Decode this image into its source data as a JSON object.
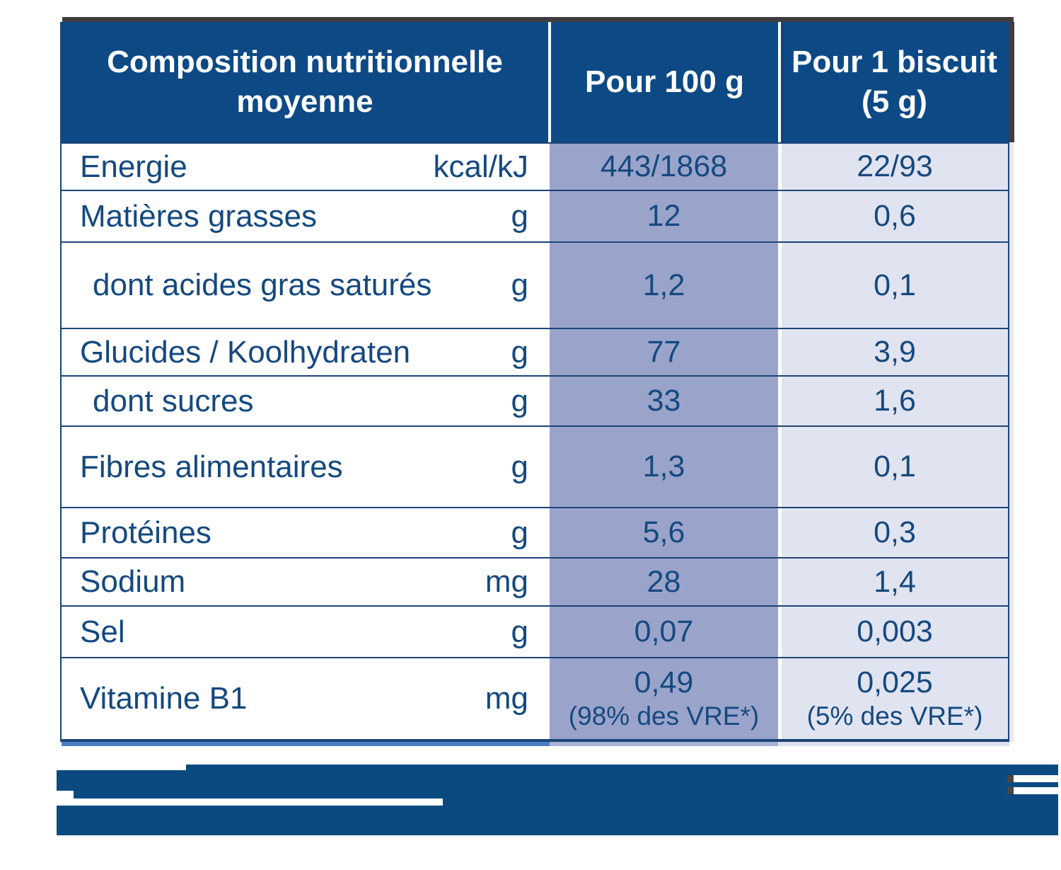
{
  "colors": {
    "header_blue": "#0d4a85",
    "text_blue": "#15497f",
    "divider_blue": "#1c4478",
    "col_100g_tint": "#9aa4ca",
    "col_biscuit_tint": "#e0e3f0",
    "footnote_blue": "#0a4a80",
    "shadow_gray": "#3e3e3e"
  },
  "table": {
    "header": {
      "composition": [
        "Composition nutritionnelle",
        "moyenne"
      ],
      "per_100g": "Pour 100 g",
      "per_biscuit": [
        "Pour 1 biscuit",
        "(5 g)"
      ]
    },
    "rows": [
      {
        "label": "Energie",
        "unit": "kcal/kJ",
        "per_100g": "443/1868",
        "per_biscuit": "22/93"
      },
      {
        "label": "Matières grasses",
        "unit": "g",
        "per_100g": "12",
        "per_biscuit": "0,6"
      },
      {
        "label": "dont acides gras saturés",
        "unit": "g",
        "per_100g": "1,2",
        "per_biscuit": "0,1",
        "indent": true
      },
      {
        "label": "Glucides / Koolhydraten",
        "unit": "g",
        "per_100g": "77",
        "per_biscuit": "3,9"
      },
      {
        "label": "dont sucres",
        "unit": "g",
        "per_100g": "33",
        "per_biscuit": "1,6",
        "indent": true
      },
      {
        "label": "Fibres alimentaires",
        "unit": "g",
        "per_100g": "1,3",
        "per_biscuit": "0,1"
      },
      {
        "label": "Protéines",
        "unit": "g",
        "per_100g": "5,6",
        "per_biscuit": "0,3"
      },
      {
        "label": "Sodium",
        "unit": "mg",
        "per_100g": "28",
        "per_biscuit": "1,4"
      },
      {
        "label": "Sel",
        "unit": "g",
        "per_100g": "0,07",
        "per_biscuit": "0,003"
      },
      {
        "label": "Vitamine B1",
        "unit": "mg",
        "per_100g": "0,49",
        "per_100g_note": "(98% des VRE*)",
        "per_biscuit": "0,025",
        "per_biscuit_note": "(5% des VRE*)"
      }
    ]
  }
}
